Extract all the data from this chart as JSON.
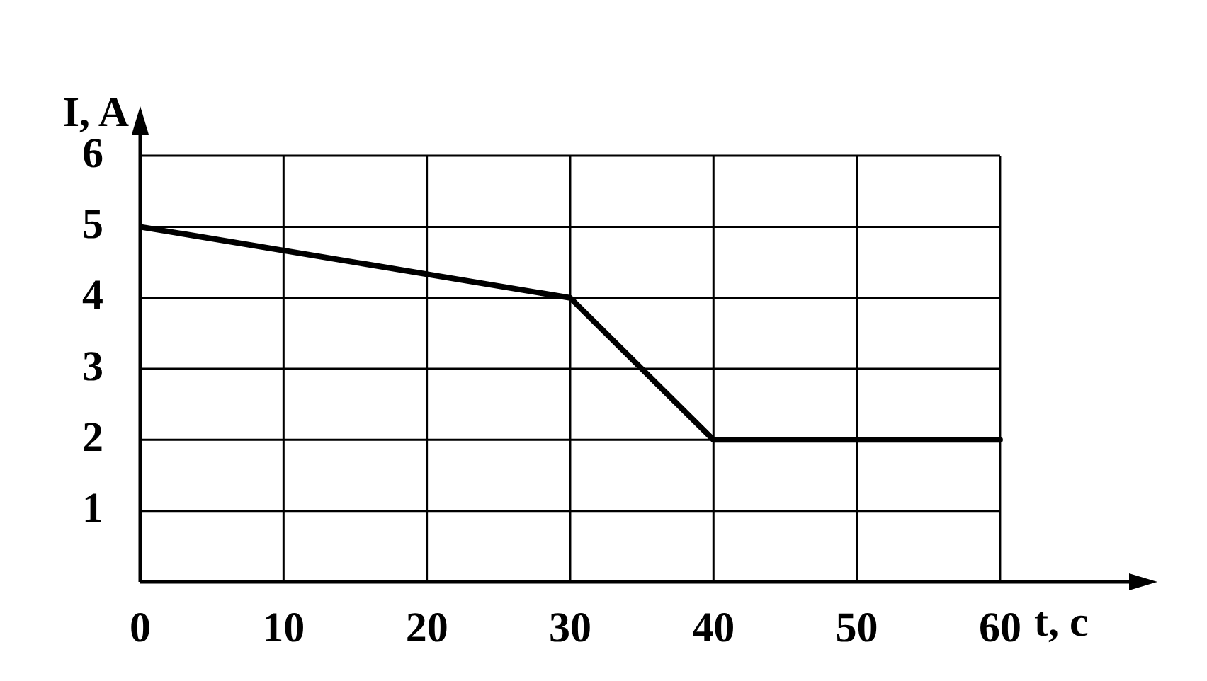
{
  "chart_data": {
    "type": "line",
    "xlabel": "t, c",
    "ylabel": "I, A",
    "x": [
      0,
      30,
      40,
      60
    ],
    "series": [
      {
        "color": "#000000",
        "values": [
          5,
          4,
          2,
          2
        ]
      }
    ],
    "xlim": [
      0,
      69
    ],
    "ylim": [
      0,
      6.3
    ],
    "xticks": [
      0,
      10,
      20,
      30,
      40,
      50,
      60
    ],
    "yticks": [
      {
        "value": 0,
        "label": null
      },
      1,
      2,
      3,
      4,
      5,
      6
    ],
    "grid": true,
    "legend": false,
    "marker": "none"
  }
}
